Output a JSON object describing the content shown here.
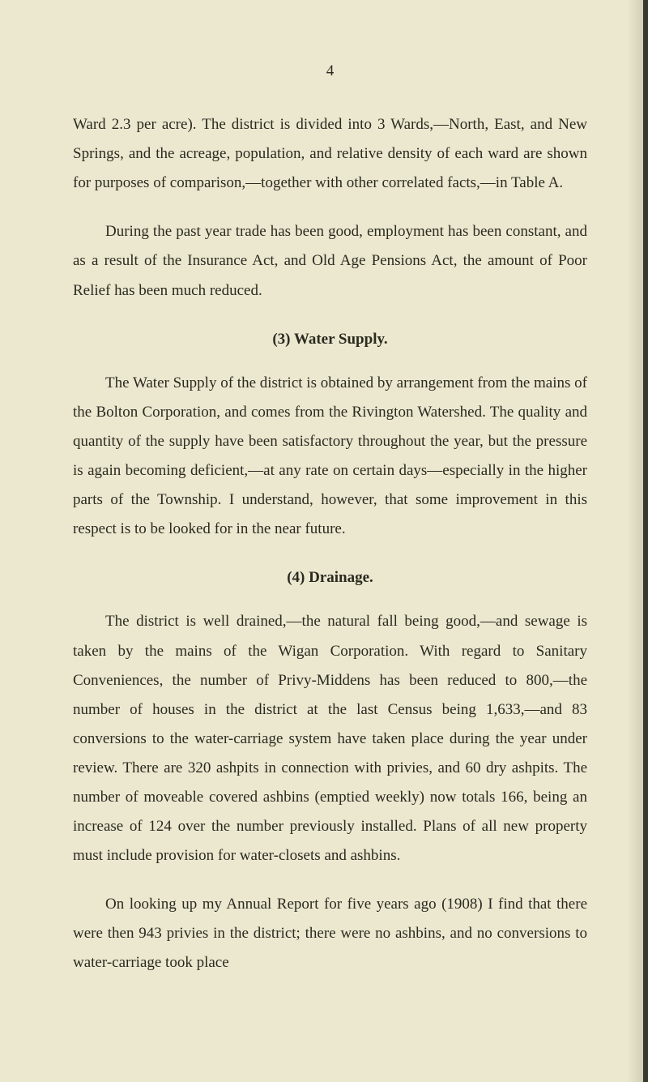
{
  "page_number": "4",
  "paragraphs": {
    "p1": "Ward 2.3 per acre). The district is divided into 3 Wards,—North, East, and New Springs, and the acreage, population, and relative density of each ward are shown for purposes of comparison,—together with other correlated facts,—in Table A.",
    "p2": "During the past year trade has been good, employment has been constant, and as a result of the Insurance Act, and Old Age Pensions Act, the amount of Poor Relief has been much reduced.",
    "p3": "The Water Supply of the district is obtained by arrangement from the mains of the Bolton Corporation, and comes from the Rivington Watershed. The quality and quantity of the supply have been satisfactory throughout the year, but the pressure is again becoming deficient,—at any rate on certain days—especially in the higher parts of the Township. I understand, however, that some improvement in this respect is to be looked for in the near future.",
    "p4": "The district is well drained,—the natural fall being good,—and sewage is taken by the mains of the Wigan Corporation. With regard to Sanitary Conveniences, the number of Privy-Middens has been reduced to 800,—the number of houses in the district at the last Census being 1,633,—and 83 conversions to the water-carriage system have taken place during the year under review. There are 320 ashpits in connection with privies, and 60 dry ashpits. The number of moveable covered ashbins (emptied weekly) now totals 166, being an increase of 124 over the number previously installed. Plans of all new property must include provision for water-closets and ashbins.",
    "p5": "On looking up my Annual Report for five years ago (1908) I find that there were then 943 privies in the district; there were no ashbins, and no conversions to water-carriage took place"
  },
  "headings": {
    "h3": "(3) Water Supply.",
    "h4": "(4) Drainage."
  },
  "colors": {
    "background": "#ece8d0",
    "text": "#2a2a1f",
    "border": "#3a3a2a"
  },
  "typography": {
    "font_family": "Georgia, Times New Roman, serif",
    "font_size": 19,
    "line_height": 1.9
  }
}
